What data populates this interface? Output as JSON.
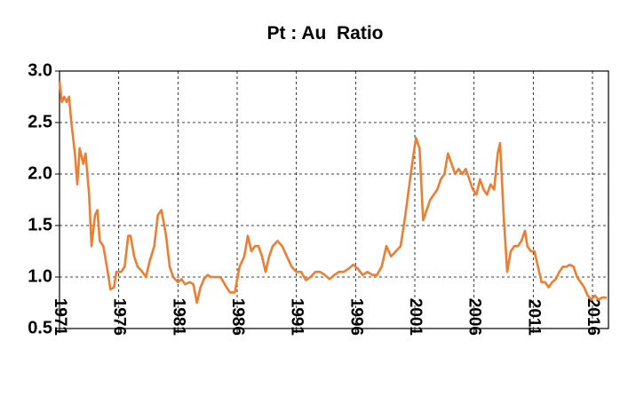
{
  "chart_data": {
    "type": "line",
    "title": "Pt : Au  Ratio",
    "xlim": [
      1971,
      2017.35
    ],
    "xticks": [
      1971,
      1976,
      1981,
      1986,
      1991,
      1996,
      2001,
      2006,
      2011,
      2016
    ],
    "ylim": [
      0.5,
      3.0
    ],
    "yticks": [
      0.5,
      {
        "value": 1.0,
        "label": "1.0"
      },
      1.5,
      {
        "value": 2.0,
        "label": "2.0"
      },
      2.5,
      {
        "value": 3.0,
        "label": "3.0"
      }
    ],
    "grid": true,
    "x": [
      1971.0,
      1971.2,
      1971.4,
      1971.6,
      1971.8,
      1972.0,
      1972.3,
      1972.5,
      1972.7,
      1973.0,
      1973.2,
      1973.5,
      1973.7,
      1974.0,
      1974.2,
      1974.4,
      1974.7,
      1975.0,
      1975.3,
      1975.6,
      1975.8,
      1976.2,
      1976.5,
      1976.8,
      1977.0,
      1977.3,
      1977.6,
      1978.0,
      1978.3,
      1978.6,
      1979.0,
      1979.3,
      1979.6,
      1980.0,
      1980.3,
      1980.6,
      1981.0,
      1981.3,
      1981.6,
      1982.0,
      1982.3,
      1982.6,
      1982.9,
      1983.2,
      1983.5,
      1983.8,
      1984.2,
      1984.6,
      1985.0,
      1985.4,
      1985.8,
      1986.2,
      1986.6,
      1986.9,
      1987.2,
      1987.5,
      1987.8,
      1988.1,
      1988.4,
      1988.7,
      1989.0,
      1989.4,
      1989.8,
      1990.2,
      1990.6,
      1991.0,
      1991.4,
      1991.8,
      1992.2,
      1992.6,
      1993.0,
      1993.4,
      1993.8,
      1994.2,
      1994.6,
      1995.0,
      1995.4,
      1995.8,
      1996.2,
      1996.6,
      1997.0,
      1997.4,
      1997.8,
      1998.2,
      1998.6,
      1999.0,
      1999.4,
      1999.8,
      2000.2,
      2000.6,
      2000.9,
      2001.1,
      2001.4,
      2001.7,
      2002.0,
      2002.3,
      2002.6,
      2002.9,
      2003.2,
      2003.5,
      2003.8,
      2004.1,
      2004.4,
      2004.7,
      2005.0,
      2005.3,
      2005.6,
      2005.9,
      2006.2,
      2006.5,
      2006.8,
      2007.1,
      2007.4,
      2007.7,
      2008.0,
      2008.2,
      2008.5,
      2008.8,
      2009.1,
      2009.4,
      2009.7,
      2010.0,
      2010.3,
      2010.5,
      2010.8,
      2011.1,
      2011.4,
      2011.7,
      2012.0,
      2012.3,
      2012.6,
      2012.9,
      2013.2,
      2013.5,
      2013.8,
      2014.1,
      2014.4,
      2014.7,
      2015.0,
      2015.3,
      2015.6,
      2015.9,
      2016.2,
      2016.5,
      2016.8,
      2017.2
    ],
    "series": [
      {
        "name": "Pt : Au",
        "color": "#ed7d31",
        "values": [
          2.9,
          2.7,
          2.75,
          2.7,
          2.75,
          2.5,
          2.2,
          1.9,
          2.25,
          2.1,
          2.2,
          1.8,
          1.3,
          1.6,
          1.65,
          1.35,
          1.3,
          1.1,
          0.88,
          0.9,
          1.05,
          1.05,
          1.1,
          1.4,
          1.4,
          1.2,
          1.1,
          1.05,
          1.0,
          1.15,
          1.3,
          1.6,
          1.65,
          1.4,
          1.1,
          1.0,
          0.95,
          0.98,
          0.93,
          0.95,
          0.93,
          0.75,
          0.9,
          0.98,
          1.02,
          1.0,
          1.0,
          1.0,
          0.92,
          0.85,
          0.85,
          1.1,
          1.2,
          1.4,
          1.25,
          1.3,
          1.3,
          1.2,
          1.05,
          1.2,
          1.3,
          1.35,
          1.3,
          1.2,
          1.1,
          1.05,
          1.05,
          0.97,
          1.0,
          1.05,
          1.05,
          1.02,
          0.98,
          1.02,
          1.05,
          1.05,
          1.08,
          1.12,
          1.08,
          1.02,
          1.05,
          1.02,
          1.02,
          1.1,
          1.3,
          1.2,
          1.25,
          1.3,
          1.6,
          1.95,
          2.2,
          2.35,
          2.25,
          1.55,
          1.65,
          1.75,
          1.8,
          1.85,
          1.95,
          2.0,
          2.2,
          2.1,
          2.0,
          2.05,
          2.0,
          2.05,
          1.95,
          1.85,
          1.8,
          1.95,
          1.85,
          1.8,
          1.9,
          1.85,
          2.2,
          2.3,
          1.6,
          1.05,
          1.25,
          1.3,
          1.3,
          1.35,
          1.45,
          1.3,
          1.25,
          1.25,
          1.1,
          0.95,
          0.95,
          0.9,
          0.95,
          0.98,
          1.05,
          1.1,
          1.1,
          1.12,
          1.1,
          1.0,
          0.95,
          0.9,
          0.82,
          0.78,
          0.82,
          0.78,
          0.8,
          0.8
        ]
      }
    ]
  }
}
